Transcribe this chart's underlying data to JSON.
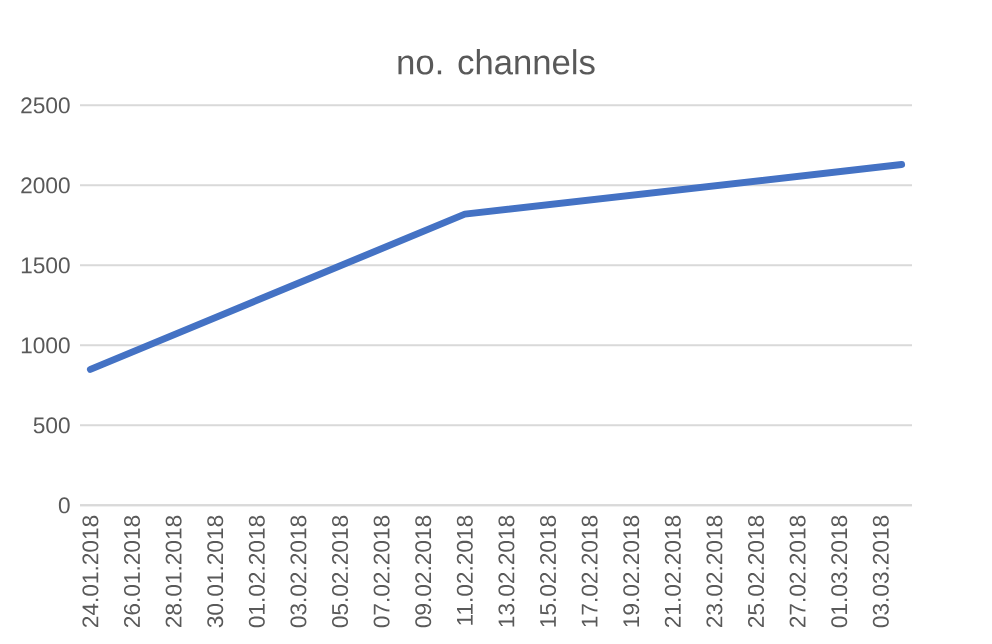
{
  "chart_data": {
    "type": "line",
    "title": "no. channels",
    "x": [
      "2018-01-24",
      "2018-02-11",
      "2018-03-04"
    ],
    "series": [
      {
        "color": "#4472c4",
        "values": [
          850,
          1820,
          2130
        ]
      }
    ],
    "xlim": [
      "2018-01-23T12:00",
      "2018-03-04T12:00"
    ],
    "xticks": [
      {
        "value": "2018-01-24",
        "label": "24.01.2018"
      },
      {
        "value": "2018-01-26",
        "label": "26.01.2018"
      },
      {
        "value": "2018-01-28",
        "label": "28.01.2018"
      },
      {
        "value": "2018-01-30",
        "label": "30.01.2018"
      },
      {
        "value": "2018-02-01",
        "label": "01.02.2018"
      },
      {
        "value": "2018-02-03",
        "label": "03.02.2018"
      },
      {
        "value": "2018-02-05",
        "label": "05.02.2018"
      },
      {
        "value": "2018-02-07",
        "label": "07.02.2018"
      },
      {
        "value": "2018-02-09",
        "label": "09.02.2018"
      },
      {
        "value": "2018-02-11",
        "label": "11.02.2018"
      },
      {
        "value": "2018-02-13",
        "label": "13.02.2018"
      },
      {
        "value": "2018-02-15",
        "label": "15.02.2018"
      },
      {
        "value": "2018-02-17",
        "label": "17.02.2018"
      },
      {
        "value": "2018-02-19",
        "label": "19.02.2018"
      },
      {
        "value": "2018-02-21",
        "label": "21.02.2018"
      },
      {
        "value": "2018-02-23",
        "label": "23.02.2018"
      },
      {
        "value": "2018-02-25",
        "label": "25.02.2018"
      },
      {
        "value": "2018-02-27",
        "label": "27.02.2018"
      },
      {
        "value": "2018-03-01",
        "label": "01.03.2018"
      },
      {
        "value": "2018-03-03",
        "label": "03.03.2018"
      }
    ],
    "ylim": [
      0,
      2500
    ],
    "yticks": [
      0,
      500,
      1000,
      1500,
      2000,
      2500
    ],
    "grid": "y",
    "marker": "none",
    "line_style": "solid"
  }
}
